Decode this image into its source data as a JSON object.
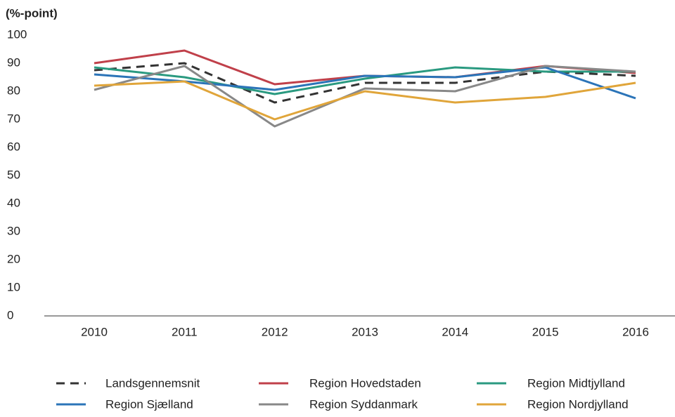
{
  "chart_data": {
    "type": "line",
    "y_label": "(%-point)",
    "categories": [
      "2010",
      "2011",
      "2012",
      "2013",
      "2014",
      "2015",
      "2016"
    ],
    "series": [
      {
        "name": "Landsgennemsnit",
        "color": "#333333",
        "dashed": true,
        "values": [
          87.5,
          90,
          76,
          83,
          83,
          87,
          85.5
        ]
      },
      {
        "name": "Region Hovedstaden",
        "color": "#c0404a",
        "values": [
          90,
          94.5,
          82.5,
          85.5,
          85,
          89,
          86.5
        ]
      },
      {
        "name": "Region Midtjylland",
        "color": "#2a9a80",
        "values": [
          88.5,
          85,
          79,
          84.5,
          88.5,
          87,
          87
        ]
      },
      {
        "name": "Region Sjælland",
        "color": "#2b74b8",
        "values": [
          86,
          83.5,
          80.5,
          85.5,
          85,
          88.5,
          77.5
        ]
      },
      {
        "name": "Region Syddanmark",
        "color": "#888888",
        "values": [
          80.5,
          89,
          67.5,
          81,
          80,
          89,
          87
        ]
      },
      {
        "name": "Region Nordjylland",
        "color": "#e0a53a",
        "values": [
          82,
          83.5,
          70,
          80,
          76,
          78,
          83
        ]
      }
    ],
    "ylim": [
      0,
      100
    ],
    "yticks": [
      0,
      10,
      20,
      30,
      40,
      50,
      60,
      70,
      80,
      90,
      100
    ],
    "grid": false
  }
}
